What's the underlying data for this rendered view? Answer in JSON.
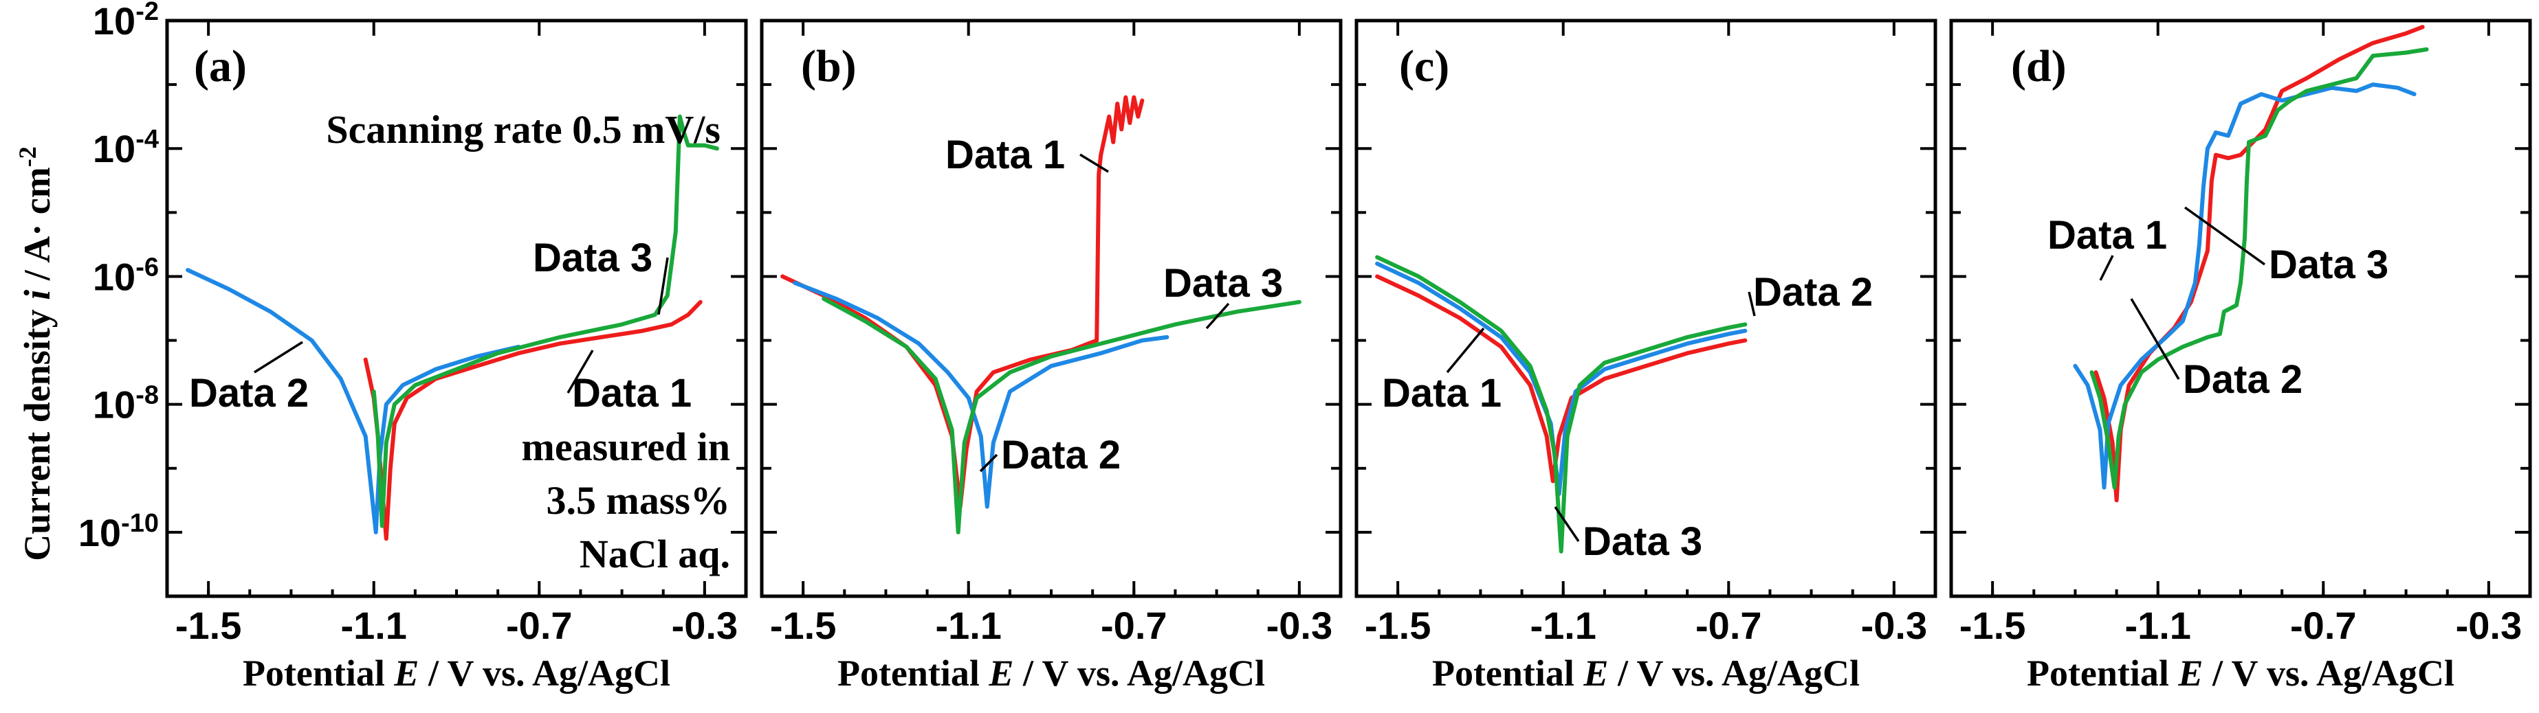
{
  "figure": {
    "ylabel_main": "Current density ",
    "ylabel_var": "i",
    "ylabel_unit": " / A· cm",
    "ylabel_sup": "-2",
    "xlabel_prefix": "Potential ",
    "xlabel_var": "E",
    "xlabel_suffix": " / V vs. Ag/AgCl",
    "colors": {
      "Data 1": "#ee1c1c",
      "Data 2": "#1e88e5",
      "Data 3": "#19a83a"
    }
  },
  "chart_data": [
    {
      "type": "line",
      "panel": "(a)",
      "xlim": [
        -1.6,
        -0.2
      ],
      "ylim_log10": [
        -11,
        -2
      ],
      "xticks": [
        -1.5,
        -1.1,
        -0.7,
        -0.3
      ],
      "xtick_labels": [
        "-1.5",
        "-1.1",
        "-0.7",
        "-0.3"
      ],
      "ytick_exponents": [
        -2,
        -4,
        -6,
        -8,
        -10
      ],
      "ytick_base": "10",
      "ytick_sups": [
        "-2",
        "-4",
        "-6",
        "-8",
        "-10"
      ],
      "annotations": [
        "Scanning rate 0.5 mV/s",
        "measured in",
        "3.5 mass%",
        "NaCl aq."
      ],
      "series": [
        {
          "name": "Data 1",
          "label": "Data 1",
          "points": [
            [
              -1.12,
              -7.3
            ],
            [
              -1.1,
              -7.9
            ],
            [
              -1.09,
              -8.5
            ],
            [
              -1.08,
              -9.3
            ],
            [
              -1.07,
              -10.1
            ],
            [
              -1.06,
              -9.0
            ],
            [
              -1.05,
              -8.3
            ],
            [
              -1.02,
              -7.9
            ],
            [
              -0.95,
              -7.6
            ],
            [
              -0.85,
              -7.4
            ],
            [
              -0.75,
              -7.2
            ],
            [
              -0.65,
              -7.05
            ],
            [
              -0.55,
              -6.95
            ],
            [
              -0.45,
              -6.85
            ],
            [
              -0.38,
              -6.75
            ],
            [
              -0.34,
              -6.6
            ],
            [
              -0.31,
              -6.4
            ]
          ]
        },
        {
          "name": "Data 2",
          "label": "Data 2",
          "points": [
            [
              -1.55,
              -5.9
            ],
            [
              -1.45,
              -6.2
            ],
            [
              -1.35,
              -6.55
            ],
            [
              -1.25,
              -7.0
            ],
            [
              -1.18,
              -7.6
            ],
            [
              -1.12,
              -8.5
            ],
            [
              -1.095,
              -10.0
            ],
            [
              -1.085,
              -8.8
            ],
            [
              -1.07,
              -8.0
            ],
            [
              -1.03,
              -7.7
            ],
            [
              -0.95,
              -7.45
            ],
            [
              -0.85,
              -7.25
            ],
            [
              -0.75,
              -7.1
            ]
          ]
        },
        {
          "name": "Data 3",
          "label": "Data 3",
          "points": [
            [
              -1.1,
              -7.8
            ],
            [
              -1.09,
              -8.5
            ],
            [
              -1.08,
              -9.9
            ],
            [
              -1.07,
              -8.6
            ],
            [
              -1.05,
              -8.0
            ],
            [
              -1.0,
              -7.7
            ],
            [
              -0.9,
              -7.45
            ],
            [
              -0.8,
              -7.2
            ],
            [
              -0.65,
              -6.95
            ],
            [
              -0.5,
              -6.75
            ],
            [
              -0.42,
              -6.6
            ],
            [
              -0.39,
              -6.3
            ],
            [
              -0.37,
              -5.3
            ],
            [
              -0.36,
              -3.5
            ],
            [
              -0.35,
              -3.75
            ],
            [
              -0.34,
              -3.95
            ],
            [
              -0.3,
              -3.95
            ],
            [
              -0.27,
              -4.0
            ]
          ]
        }
      ],
      "callouts": [
        {
          "series": "Data 3",
          "text": "Data 3"
        },
        {
          "series": "Data 2",
          "text": "Data 2"
        },
        {
          "series": "Data 1",
          "text": "Data 1"
        }
      ]
    },
    {
      "type": "line",
      "panel": "(b)",
      "xlim": [
        -1.6,
        -0.2
      ],
      "ylim_log10": [
        -11,
        -2
      ],
      "xticks": [
        -1.5,
        -1.1,
        -0.7,
        -0.3
      ],
      "xtick_labels": [
        "-1.5",
        "-1.1",
        "-0.7",
        "-0.3"
      ],
      "series": [
        {
          "name": "Data 1",
          "label": "Data 1",
          "points": [
            [
              -1.55,
              -6.0
            ],
            [
              -1.45,
              -6.3
            ],
            [
              -1.35,
              -6.65
            ],
            [
              -1.25,
              -7.1
            ],
            [
              -1.18,
              -7.7
            ],
            [
              -1.14,
              -8.5
            ],
            [
              -1.12,
              -9.6
            ],
            [
              -1.105,
              -8.7
            ],
            [
              -1.08,
              -7.8
            ],
            [
              -1.04,
              -7.5
            ],
            [
              -0.95,
              -7.3
            ],
            [
              -0.85,
              -7.15
            ],
            [
              -0.79,
              -7.0
            ],
            [
              -0.785,
              -4.4
            ],
            [
              -0.78,
              -4.1
            ],
            [
              -0.77,
              -3.8
            ],
            [
              -0.76,
              -3.5
            ],
            [
              -0.75,
              -3.9
            ],
            [
              -0.74,
              -3.3
            ],
            [
              -0.73,
              -3.7
            ],
            [
              -0.72,
              -3.2
            ],
            [
              -0.71,
              -3.6
            ],
            [
              -0.7,
              -3.2
            ],
            [
              -0.69,
              -3.5
            ],
            [
              -0.68,
              -3.25
            ]
          ]
        },
        {
          "name": "Data 2",
          "label": "Data 2",
          "points": [
            [
              -1.52,
              -6.1
            ],
            [
              -1.42,
              -6.35
            ],
            [
              -1.32,
              -6.65
            ],
            [
              -1.22,
              -7.05
            ],
            [
              -1.15,
              -7.5
            ],
            [
              -1.1,
              -7.9
            ],
            [
              -1.07,
              -8.5
            ],
            [
              -1.055,
              -9.6
            ],
            [
              -1.04,
              -8.6
            ],
            [
              -1.0,
              -7.8
            ],
            [
              -0.9,
              -7.4
            ],
            [
              -0.78,
              -7.2
            ],
            [
              -0.68,
              -7.0
            ],
            [
              -0.62,
              -6.95
            ]
          ]
        },
        {
          "name": "Data 3",
          "label": "Data 3",
          "points": [
            [
              -1.45,
              -6.35
            ],
            [
              -1.35,
              -6.7
            ],
            [
              -1.25,
              -7.1
            ],
            [
              -1.18,
              -7.6
            ],
            [
              -1.14,
              -8.4
            ],
            [
              -1.125,
              -10.0
            ],
            [
              -1.11,
              -8.6
            ],
            [
              -1.08,
              -7.9
            ],
            [
              -1.0,
              -7.5
            ],
            [
              -0.9,
              -7.25
            ],
            [
              -0.75,
              -7.0
            ],
            [
              -0.6,
              -6.75
            ],
            [
              -0.45,
              -6.55
            ],
            [
              -0.3,
              -6.4
            ]
          ]
        }
      ],
      "callouts": [
        {
          "series": "Data 1",
          "text": "Data 1"
        },
        {
          "series": "Data 3",
          "text": "Data 3"
        },
        {
          "series": "Data 2",
          "text": "Data 2"
        }
      ]
    },
    {
      "type": "line",
      "panel": "(c)",
      "xlim": [
        -1.6,
        -0.2
      ],
      "ylim_log10": [
        -11,
        -2
      ],
      "xticks": [
        -1.5,
        -1.1,
        -0.7,
        -0.3
      ],
      "xtick_labels": [
        "-1.5",
        "-1.1",
        "-0.7",
        "-0.3"
      ],
      "series": [
        {
          "name": "Data 1",
          "label": "Data 1",
          "points": [
            [
              -1.55,
              -6.0
            ],
            [
              -1.45,
              -6.3
            ],
            [
              -1.35,
              -6.65
            ],
            [
              -1.25,
              -7.1
            ],
            [
              -1.18,
              -7.7
            ],
            [
              -1.14,
              -8.5
            ],
            [
              -1.125,
              -9.2
            ],
            [
              -1.11,
              -8.5
            ],
            [
              -1.08,
              -7.9
            ],
            [
              -1.0,
              -7.6
            ],
            [
              -0.9,
              -7.4
            ],
            [
              -0.8,
              -7.2
            ],
            [
              -0.7,
              -7.05
            ],
            [
              -0.66,
              -7.0
            ]
          ]
        },
        {
          "name": "Data 2",
          "label": "Data 2",
          "points": [
            [
              -1.55,
              -5.8
            ],
            [
              -1.45,
              -6.1
            ],
            [
              -1.35,
              -6.5
            ],
            [
              -1.25,
              -6.95
            ],
            [
              -1.18,
              -7.5
            ],
            [
              -1.13,
              -8.3
            ],
            [
              -1.11,
              -9.4
            ],
            [
              -1.095,
              -8.4
            ],
            [
              -1.07,
              -7.8
            ],
            [
              -1.0,
              -7.45
            ],
            [
              -0.9,
              -7.25
            ],
            [
              -0.8,
              -7.05
            ],
            [
              -0.7,
              -6.9
            ],
            [
              -0.66,
              -6.85
            ]
          ]
        },
        {
          "name": "Data 3",
          "label": "Data 3",
          "points": [
            [
              -1.55,
              -5.7
            ],
            [
              -1.45,
              -6.0
            ],
            [
              -1.35,
              -6.4
            ],
            [
              -1.25,
              -6.85
            ],
            [
              -1.18,
              -7.4
            ],
            [
              -1.14,
              -8.1
            ],
            [
              -1.12,
              -8.8
            ],
            [
              -1.105,
              -10.3
            ],
            [
              -1.09,
              -8.5
            ],
            [
              -1.06,
              -7.7
            ],
            [
              -1.0,
              -7.35
            ],
            [
              -0.9,
              -7.15
            ],
            [
              -0.8,
              -6.95
            ],
            [
              -0.7,
              -6.8
            ],
            [
              -0.66,
              -6.75
            ]
          ]
        }
      ],
      "callouts": [
        {
          "series": "Data 2",
          "text": "Data 2"
        },
        {
          "series": "Data 1",
          "text": "Data 1"
        },
        {
          "series": "Data 3",
          "text": "Data 3"
        }
      ]
    },
    {
      "type": "line",
      "panel": "(d)",
      "xlim": [
        -1.6,
        -0.2
      ],
      "ylim_log10": [
        -11,
        -2
      ],
      "xticks": [
        -1.5,
        -1.1,
        -0.7,
        -0.3
      ],
      "xtick_labels": [
        "-1.5",
        "-1.1",
        "-0.7",
        "-0.3"
      ],
      "series": [
        {
          "name": "Data 1",
          "label": "Data 1",
          "points": [
            [
              -1.25,
              -7.5
            ],
            [
              -1.23,
              -7.9
            ],
            [
              -1.21,
              -8.6
            ],
            [
              -1.2,
              -9.5
            ],
            [
              -1.19,
              -8.4
            ],
            [
              -1.17,
              -7.7
            ],
            [
              -1.12,
              -7.2
            ],
            [
              -1.06,
              -6.8
            ],
            [
              -1.02,
              -6.4
            ],
            [
              -1.0,
              -6.0
            ],
            [
              -0.98,
              -5.6
            ],
            [
              -0.97,
              -4.5
            ],
            [
              -0.96,
              -4.1
            ],
            [
              -0.93,
              -4.15
            ],
            [
              -0.9,
              -4.1
            ],
            [
              -0.87,
              -3.9
            ],
            [
              -0.84,
              -3.7
            ],
            [
              -0.8,
              -3.1
            ],
            [
              -0.74,
              -2.9
            ],
            [
              -0.66,
              -2.6
            ],
            [
              -0.58,
              -2.35
            ],
            [
              -0.5,
              -2.2
            ],
            [
              -0.46,
              -2.1
            ]
          ]
        },
        {
          "name": "Data 2",
          "label": "Data 2",
          "points": [
            [
              -1.3,
              -7.4
            ],
            [
              -1.27,
              -7.7
            ],
            [
              -1.24,
              -8.4
            ],
            [
              -1.23,
              -9.3
            ],
            [
              -1.22,
              -8.3
            ],
            [
              -1.19,
              -7.7
            ],
            [
              -1.14,
              -7.3
            ],
            [
              -1.08,
              -6.95
            ],
            [
              -1.04,
              -6.7
            ],
            [
              -1.01,
              -6.1
            ],
            [
              -1.0,
              -5.5
            ],
            [
              -0.99,
              -4.6
            ],
            [
              -0.98,
              -4.0
            ],
            [
              -0.96,
              -3.75
            ],
            [
              -0.93,
              -3.8
            ],
            [
              -0.9,
              -3.3
            ],
            [
              -0.85,
              -3.15
            ],
            [
              -0.8,
              -3.25
            ],
            [
              -0.74,
              -3.15
            ],
            [
              -0.68,
              -3.05
            ],
            [
              -0.62,
              -3.1
            ],
            [
              -0.58,
              -3.0
            ],
            [
              -0.52,
              -3.05
            ],
            [
              -0.48,
              -3.15
            ]
          ]
        },
        {
          "name": "Data 3",
          "label": "Data 3",
          "points": [
            [
              -1.26,
              -7.5
            ],
            [
              -1.24,
              -7.9
            ],
            [
              -1.22,
              -8.6
            ],
            [
              -1.205,
              -9.3
            ],
            [
              -1.195,
              -8.5
            ],
            [
              -1.18,
              -8.0
            ],
            [
              -1.14,
              -7.5
            ],
            [
              -1.1,
              -7.3
            ],
            [
              -1.04,
              -7.1
            ],
            [
              -0.98,
              -6.95
            ],
            [
              -0.95,
              -6.9
            ],
            [
              -0.94,
              -6.55
            ],
            [
              -0.91,
              -6.45
            ],
            [
              -0.9,
              -6.1
            ],
            [
              -0.89,
              -5.4
            ],
            [
              -0.885,
              -4.5
            ],
            [
              -0.88,
              -3.9
            ],
            [
              -0.84,
              -3.8
            ],
            [
              -0.81,
              -3.4
            ],
            [
              -0.78,
              -3.25
            ],
            [
              -0.74,
              -3.1
            ],
            [
              -0.68,
              -3.0
            ],
            [
              -0.62,
              -2.9
            ],
            [
              -0.58,
              -2.55
            ],
            [
              -0.5,
              -2.5
            ],
            [
              -0.45,
              -2.45
            ]
          ]
        }
      ],
      "callouts": [
        {
          "series": "Data 1",
          "text": "Data 1"
        },
        {
          "series": "Data 3",
          "text": "Data 3"
        },
        {
          "series": "Data 2",
          "text": "Data 2"
        }
      ]
    }
  ]
}
